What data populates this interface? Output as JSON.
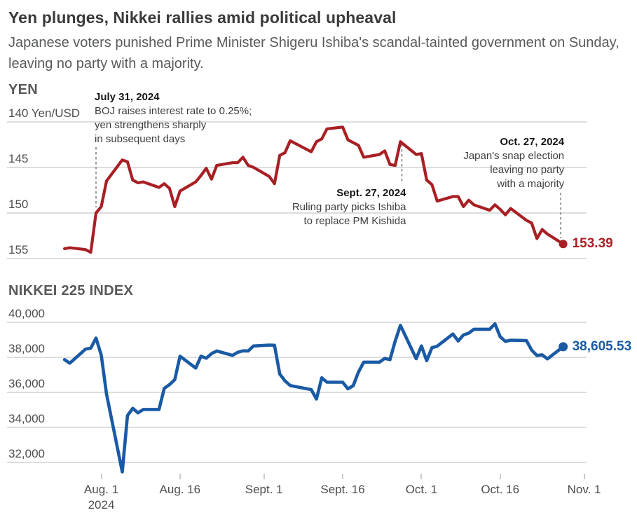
{
  "header": {
    "title": "Yen plunges, Nikkei rallies amid political upheaval",
    "subtitle": "Japanese voters punished Prime Minister Shigeru Ishiba's scandal-tainted government on Sunday, leaving no party with a majority."
  },
  "x_axis": {
    "tick_dates": [
      "2024-08-01",
      "2024-08-16",
      "2024-09-01",
      "2024-09-16",
      "2024-10-01",
      "2024-10-16",
      "2024-11-01"
    ],
    "tick_labels": [
      "Aug. 1",
      "Aug. 16",
      "Sept. 1",
      "Sept. 16",
      "Oct. 1",
      "Oct. 16",
      "Nov. 1"
    ],
    "year_label": "2024"
  },
  "chart_data": [
    {
      "type": "line",
      "title": "YEN",
      "series_name": "Yen per U.S. dollar",
      "line_color": "#a81f24",
      "y_axis_inverted": true,
      "y_ticks": [
        {
          "value": 140,
          "label": "140 Yen/USD"
        },
        {
          "value": 145,
          "label": "145"
        },
        {
          "value": 150,
          "label": "150"
        },
        {
          "value": 155,
          "label": "155"
        }
      ],
      "end_value_label": "153.39",
      "dates": [
        "2024-07-25",
        "2024-07-26",
        "2024-07-29",
        "2024-07-30",
        "2024-07-31",
        "2024-08-01",
        "2024-08-02",
        "2024-08-05",
        "2024-08-06",
        "2024-08-07",
        "2024-08-08",
        "2024-08-09",
        "2024-08-12",
        "2024-08-13",
        "2024-08-14",
        "2024-08-15",
        "2024-08-16",
        "2024-08-19",
        "2024-08-20",
        "2024-08-21",
        "2024-08-22",
        "2024-08-23",
        "2024-08-26",
        "2024-08-27",
        "2024-08-28",
        "2024-08-29",
        "2024-08-30",
        "2024-09-02",
        "2024-09-03",
        "2024-09-04",
        "2024-09-05",
        "2024-09-06",
        "2024-09-09",
        "2024-09-10",
        "2024-09-11",
        "2024-09-12",
        "2024-09-13",
        "2024-09-16",
        "2024-09-17",
        "2024-09-18",
        "2024-09-19",
        "2024-09-20",
        "2024-09-23",
        "2024-09-24",
        "2024-09-25",
        "2024-09-26",
        "2024-09-27",
        "2024-09-30",
        "2024-10-01",
        "2024-10-02",
        "2024-10-03",
        "2024-10-04",
        "2024-10-07",
        "2024-10-08",
        "2024-10-09",
        "2024-10-10",
        "2024-10-11",
        "2024-10-14",
        "2024-10-15",
        "2024-10-16",
        "2024-10-17",
        "2024-10-18",
        "2024-10-21",
        "2024-10-22",
        "2024-10-23",
        "2024-10-24",
        "2024-10-25",
        "2024-10-28"
      ],
      "values": [
        153.9,
        153.8,
        154.0,
        154.3,
        150.0,
        149.3,
        146.5,
        144.2,
        144.4,
        146.4,
        146.7,
        146.6,
        147.2,
        146.8,
        147.3,
        149.3,
        147.6,
        146.6,
        145.9,
        145.1,
        146.3,
        144.8,
        144.5,
        144.5,
        143.9,
        144.8,
        145.0,
        146.0,
        146.8,
        143.7,
        143.4,
        142.1,
        143.0,
        143.3,
        142.2,
        141.9,
        140.8,
        140.6,
        142.0,
        142.3,
        142.6,
        143.9,
        143.6,
        143.2,
        144.7,
        144.8,
        142.2,
        143.6,
        143.5,
        146.4,
        146.9,
        148.7,
        148.2,
        148.2,
        149.3,
        148.6,
        149.1,
        149.7,
        149.1,
        149.6,
        150.2,
        149.5,
        150.8,
        151.1,
        152.8,
        151.8,
        152.3,
        153.39
      ],
      "annotations": [
        {
          "date": "2024-07-31",
          "title": "July 31, 2024",
          "lines": [
            "BOJ raises interest rate to 0.25%;",
            "yen strengthens sharply",
            "in subsequent days"
          ]
        },
        {
          "date": "2024-09-27",
          "title": "Sept. 27, 2024",
          "lines": [
            "Ruling party picks Ishiba",
            "to replace PM Kishida"
          ]
        },
        {
          "date": "2024-10-27",
          "title": "Oct. 27, 2024",
          "lines": [
            "Japan's snap election",
            "leaving no party",
            "with a majority"
          ]
        }
      ]
    },
    {
      "type": "line",
      "title": "NIKKEI 225 INDEX",
      "series_name": "Nikkei 225 index",
      "line_color": "#1a5aa5",
      "y_axis_inverted": false,
      "y_ticks": [
        {
          "value": 40000,
          "label": "40,000"
        },
        {
          "value": 38000,
          "label": "38,000"
        },
        {
          "value": 36000,
          "label": "36,000"
        },
        {
          "value": 34000,
          "label": "34,000"
        },
        {
          "value": 32000,
          "label": "32,000"
        }
      ],
      "end_value_label": "38,605.53",
      "dates": [
        "2024-07-25",
        "2024-07-26",
        "2024-07-29",
        "2024-07-30",
        "2024-07-31",
        "2024-08-01",
        "2024-08-02",
        "2024-08-05",
        "2024-08-06",
        "2024-08-07",
        "2024-08-08",
        "2024-08-09",
        "2024-08-12",
        "2024-08-13",
        "2024-08-14",
        "2024-08-15",
        "2024-08-16",
        "2024-08-19",
        "2024-08-20",
        "2024-08-21",
        "2024-08-22",
        "2024-08-23",
        "2024-08-26",
        "2024-08-27",
        "2024-08-28",
        "2024-08-29",
        "2024-08-30",
        "2024-09-02",
        "2024-09-03",
        "2024-09-04",
        "2024-09-05",
        "2024-09-06",
        "2024-09-09",
        "2024-09-10",
        "2024-09-11",
        "2024-09-12",
        "2024-09-13",
        "2024-09-16",
        "2024-09-17",
        "2024-09-18",
        "2024-09-19",
        "2024-09-20",
        "2024-09-23",
        "2024-09-24",
        "2024-09-25",
        "2024-09-26",
        "2024-09-27",
        "2024-09-30",
        "2024-10-01",
        "2024-10-02",
        "2024-10-03",
        "2024-10-04",
        "2024-10-07",
        "2024-10-08",
        "2024-10-09",
        "2024-10-10",
        "2024-10-11",
        "2024-10-14",
        "2024-10-15",
        "2024-10-16",
        "2024-10-17",
        "2024-10-18",
        "2024-10-21",
        "2024-10-22",
        "2024-10-23",
        "2024-10-24",
        "2024-10-25",
        "2024-10-28"
      ],
      "values": [
        37869.51,
        37667.41,
        38468.63,
        38525.95,
        39101.82,
        38126.33,
        35909.7,
        31458.42,
        34675.46,
        35089.62,
        34831.15,
        35025.0,
        35025.0,
        36232.51,
        36442.43,
        36726.64,
        38062.67,
        37388.62,
        38062.92,
        37951.8,
        38211.01,
        38364.27,
        38110.22,
        38288.62,
        38371.76,
        38362.53,
        38647.75,
        38700.87,
        38686.31,
        37047.61,
        36657.09,
        36391.47,
        36215.75,
        36159.16,
        35619.77,
        36833.27,
        36581.76,
        36581.76,
        36203.22,
        36380.17,
        37155.33,
        37723.91,
        37723.91,
        37940.59,
        37870.26,
        38925.63,
        39829.56,
        37919.55,
        38651.97,
        37808.76,
        38552.06,
        38635.62,
        39332.74,
        38937.54,
        39277.96,
        39380.89,
        39605.8,
        39605.8,
        39910.55,
        39180.3,
        38911.19,
        38981.75,
        38954.6,
        38411.96,
        38104.86,
        38143.29,
        37913.92,
        38605.53
      ],
      "annotations": []
    }
  ]
}
